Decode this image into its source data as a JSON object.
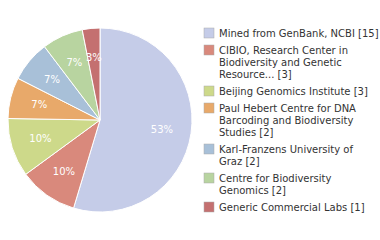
{
  "chart_data": {
    "type": "pie",
    "categories": [
      "Mined from GenBank, NCBI [15]",
      "CIBIO, Research Center in\nBiodiversity and Genetic\nResource... [3]",
      "Beijing Genomics Institute [3]",
      "Paul Hebert Centre for DNA\nBarcoding and Biodiversity\nStudies [2]",
      "Karl-Franzens University of\nGraz [2]",
      "Centre for Biodiversity\nGenomics [2]",
      "Generic Commercial Labs [1]"
    ],
    "values": [
      53,
      10,
      10,
      7,
      7,
      7,
      3
    ],
    "value_labels": [
      "53%",
      "10%",
      "10%",
      "7%",
      "7%",
      "7%",
      "3%"
    ],
    "colors": [
      "#c5cce8",
      "#d9897c",
      "#cdd98a",
      "#e8a96a",
      "#a8c0d8",
      "#b8d4a0",
      "#c47070"
    ],
    "data_labels": true,
    "legend": "right"
  }
}
